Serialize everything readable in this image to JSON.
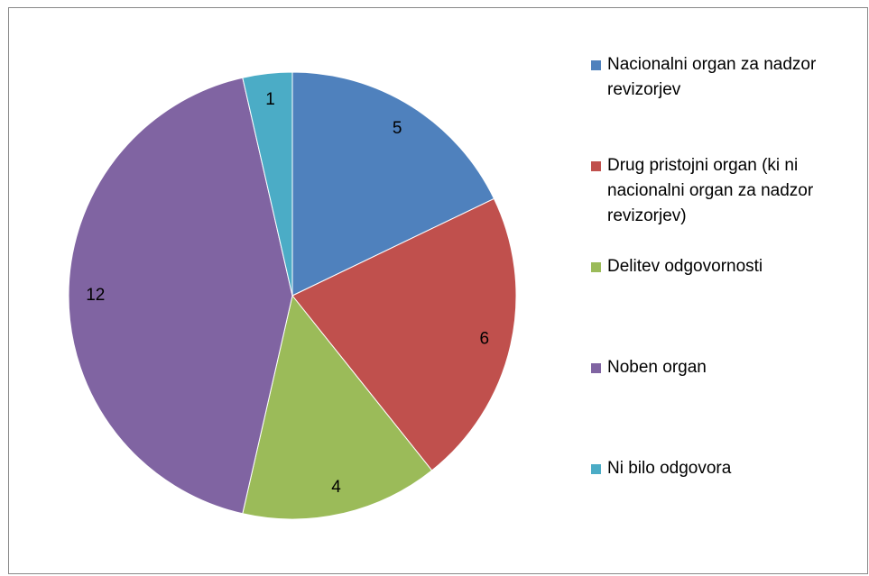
{
  "chart_data": {
    "type": "pie",
    "categories": [
      "Nacionalni organ za nadzor revizorjev",
      "Drug pristojni organ (ki ni nacionalni organ za nadzor revizorjev)",
      "Delitev odgovornosti",
      "Noben organ",
      "Ni bilo odgovora"
    ],
    "values": [
      5,
      6,
      4,
      12,
      1
    ],
    "colors": [
      "#4f81bd",
      "#c0504d",
      "#9bbb59",
      "#8064a2",
      "#4bacc6"
    ],
    "legend": "right"
  }
}
